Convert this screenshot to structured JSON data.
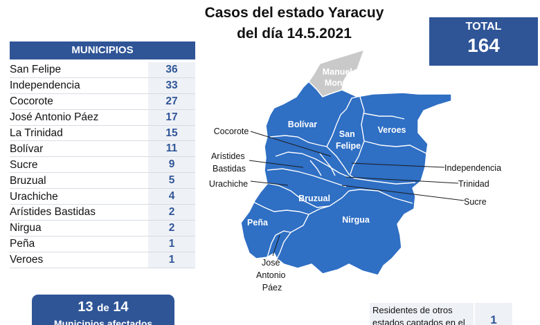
{
  "title": {
    "line1": "Casos del estado Yaracuy",
    "line2": "del día 14.5.2021"
  },
  "total": {
    "label": "TOTAL",
    "value": "164"
  },
  "municipios": {
    "header": "MUNICIPIOS",
    "rows": [
      {
        "name": "San Felipe",
        "count": "36"
      },
      {
        "name": "Independencia",
        "count": "33"
      },
      {
        "name": "Cocorote",
        "count": "27"
      },
      {
        "name": "José Antonio Páez",
        "count": "17"
      },
      {
        "name": "La Trinidad",
        "count": "15"
      },
      {
        "name": "Bolívar",
        "count": "11"
      },
      {
        "name": "Sucre",
        "count": "9"
      },
      {
        "name": "Bruzual",
        "count": "5"
      },
      {
        "name": "Urachiche",
        "count": "4"
      },
      {
        "name": "Arístides Bastidas",
        "count": "2"
      },
      {
        "name": "Nirgua",
        "count": "2"
      },
      {
        "name": "Peña",
        "count": "1"
      },
      {
        "name": "Veroes",
        "count": "1"
      }
    ]
  },
  "summary": {
    "count": "13",
    "connector": "de",
    "total": "14",
    "line2": "Municipios afectados"
  },
  "residents": {
    "text_line1": "Residentes de otros",
    "text_line2": "estados captados en el",
    "value": "1"
  },
  "map": {
    "colors": {
      "affected": "#2f6fc4",
      "unaffected": "#c9c9c9",
      "border": "#ffffff",
      "leader": "#1a1a1a"
    },
    "labels": {
      "manuel_monge": [
        "Manuel",
        "Monge"
      ],
      "bolivar": "Bolívar",
      "san_felipe": [
        "San",
        "Felipe"
      ],
      "veroes": "Veroes",
      "bruzual": "Bruzual",
      "nirgua": "Nirgua",
      "pena": "Peña",
      "cocorote": "Cocorote",
      "aristides": [
        "Arístides",
        "Bastidas"
      ],
      "urachiche": "Urachiche",
      "jose_antonio": [
        "José",
        "Antonio",
        "Páez"
      ],
      "independencia": "Independencia",
      "trinidad": "Trinidad",
      "sucre": "Sucre"
    }
  }
}
